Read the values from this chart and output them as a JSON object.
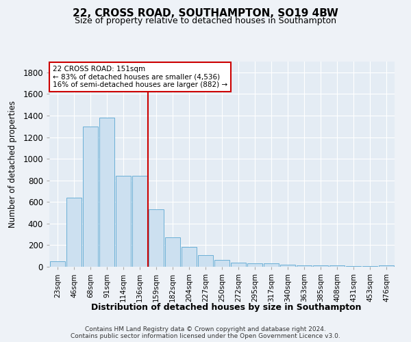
{
  "title": "22, CROSS ROAD, SOUTHAMPTON, SO19 4BW",
  "subtitle": "Size of property relative to detached houses in Southampton",
  "xlabel": "Distribution of detached houses by size in Southampton",
  "ylabel": "Number of detached properties",
  "categories": [
    "23sqm",
    "46sqm",
    "68sqm",
    "91sqm",
    "114sqm",
    "136sqm",
    "159sqm",
    "182sqm",
    "204sqm",
    "227sqm",
    "250sqm",
    "272sqm",
    "295sqm",
    "317sqm",
    "340sqm",
    "363sqm",
    "385sqm",
    "408sqm",
    "431sqm",
    "453sqm",
    "476sqm"
  ],
  "values": [
    50,
    640,
    1300,
    1380,
    840,
    840,
    530,
    275,
    185,
    105,
    65,
    35,
    30,
    30,
    20,
    15,
    13,
    13,
    7,
    7,
    12
  ],
  "bar_color": "#cce0f0",
  "bar_edge_color": "#6aafd6",
  "ylim": [
    0,
    1900
  ],
  "yticks": [
    0,
    200,
    400,
    600,
    800,
    1000,
    1200,
    1400,
    1600,
    1800
  ],
  "property_line_x": 5.5,
  "property_line_label": "22 CROSS ROAD: 151sqm",
  "annotation_line1": "← 83% of detached houses are smaller (4,536)",
  "annotation_line2": "16% of semi-detached houses are larger (882) →",
  "red_line_color": "#cc0000",
  "footer_line1": "Contains HM Land Registry data © Crown copyright and database right 2024.",
  "footer_line2": "Contains public sector information licensed under the Open Government Licence v3.0.",
  "background_color": "#eef2f7",
  "plot_bg_color": "#e4ecf4"
}
